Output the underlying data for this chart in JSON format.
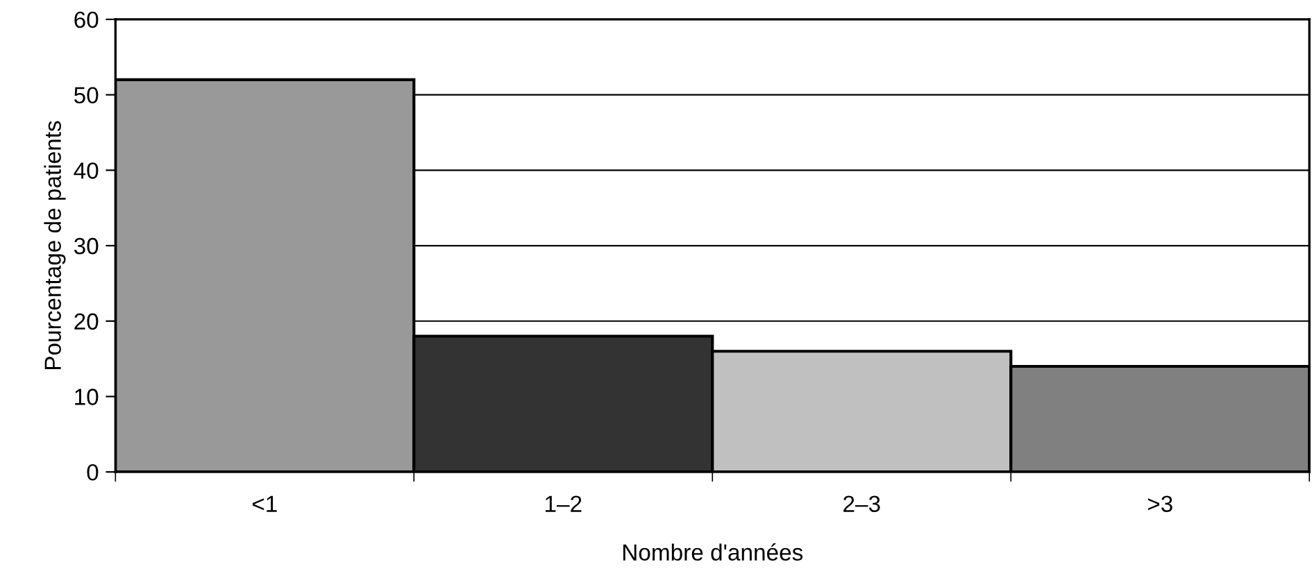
{
  "chart_data": {
    "type": "bar",
    "xlabel": "Nombre d'années",
    "ylabel": "Pourcentage de patients",
    "categories": [
      "<1",
      "1–2",
      "2–3",
      ">3"
    ],
    "values": [
      52,
      18,
      16,
      14
    ],
    "colors": [
      "#999999",
      "#333333",
      "#c0c0c0",
      "#808080"
    ],
    "ylim": [
      0,
      60
    ],
    "yticks": [
      0,
      10,
      20,
      30,
      40,
      50,
      60
    ],
    "grid": "y"
  }
}
